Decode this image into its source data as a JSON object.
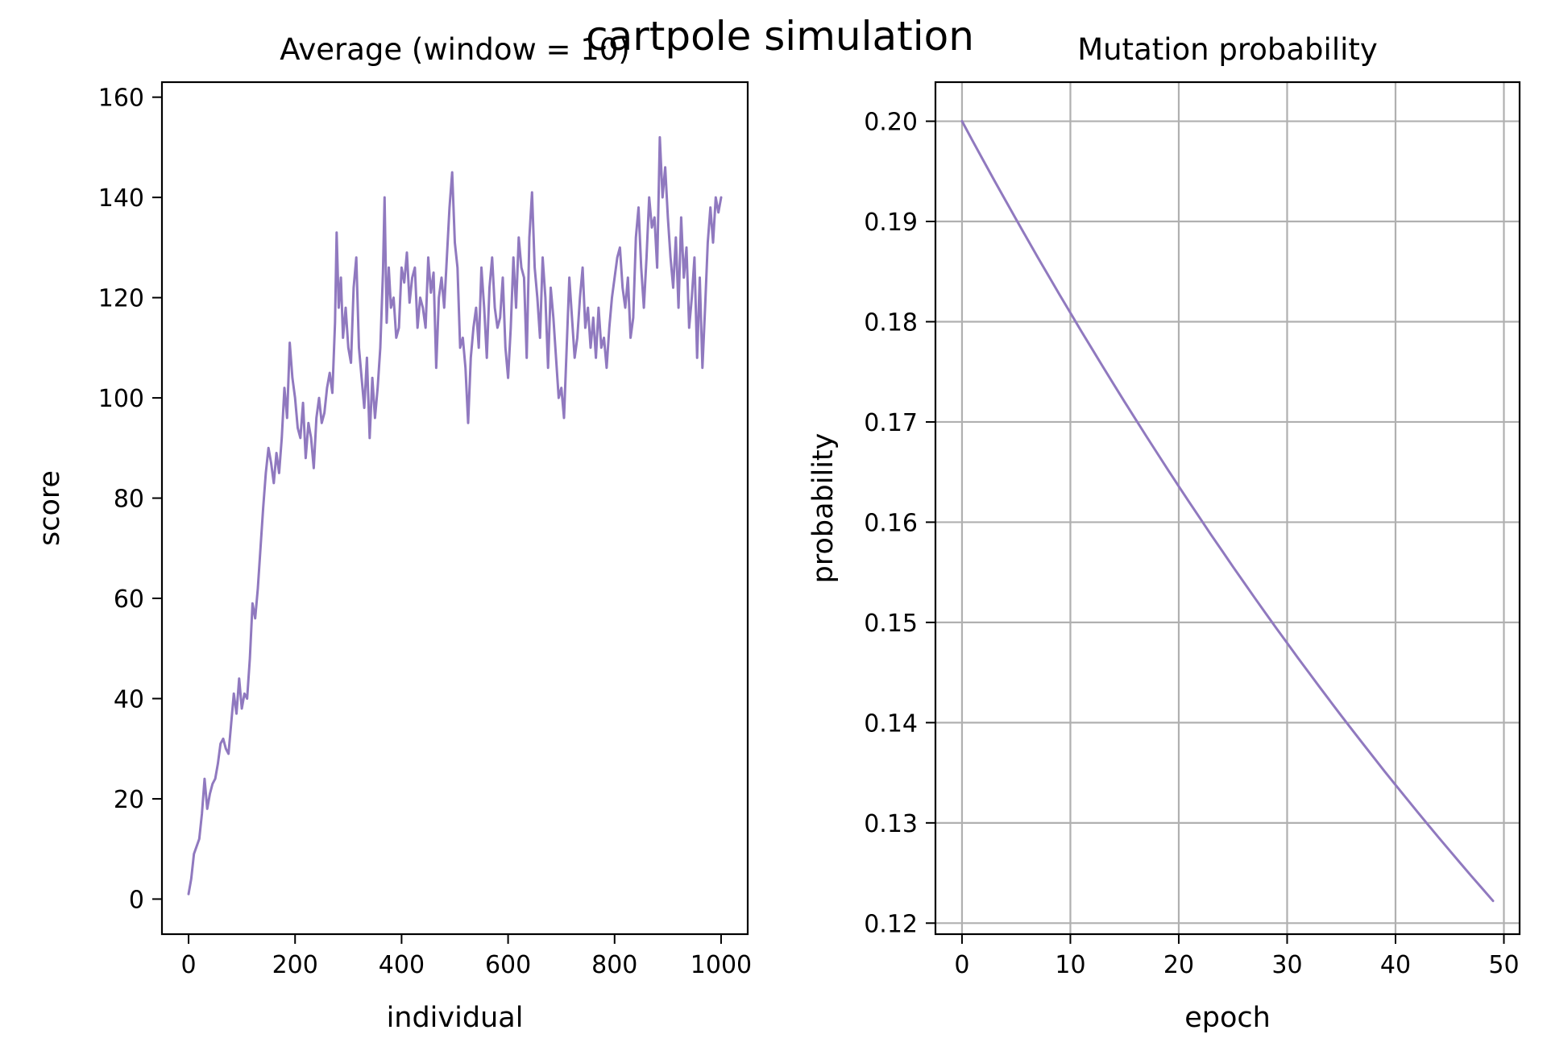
{
  "figure": {
    "suptitle": "cartpole simulation"
  },
  "colors": {
    "series": "#9079bf",
    "grid": "#b0b0b0",
    "axis": "#000000",
    "background": "#ffffff"
  },
  "chart_data": [
    {
      "type": "line",
      "title": "Average (window = 10)",
      "xlabel": "individual",
      "ylabel": "score",
      "xlim": [
        -50,
        1050
      ],
      "ylim": [
        -7,
        163
      ],
      "xticks": [
        0,
        200,
        400,
        600,
        800,
        1000
      ],
      "yticks": [
        0,
        20,
        40,
        60,
        80,
        100,
        120,
        140,
        160
      ],
      "xtick_labels": [
        "0",
        "200",
        "400",
        "600",
        "800",
        "1000"
      ],
      "ytick_labels": [
        "0",
        "20",
        "40",
        "60",
        "80",
        "100",
        "120",
        "140",
        "160"
      ],
      "grid": false,
      "series": [
        {
          "x": [
            0,
            5,
            10,
            20,
            25,
            30,
            35,
            40,
            45,
            50,
            55,
            60,
            65,
            70,
            75,
            80,
            85,
            90,
            95,
            100,
            105,
            110,
            115,
            120,
            125,
            130,
            135,
            140,
            145,
            150,
            155,
            160,
            165,
            170,
            175,
            180,
            185,
            190,
            195,
            200,
            205,
            210,
            215,
            220,
            225,
            230,
            235,
            240,
            245,
            250,
            255,
            260,
            265,
            270,
            275,
            278,
            282,
            286,
            290,
            295,
            300,
            305,
            310,
            315,
            320,
            325,
            330,
            335,
            340,
            345,
            350,
            355,
            360,
            365,
            368,
            372,
            376,
            380,
            385,
            390,
            395,
            400,
            405,
            410,
            415,
            420,
            425,
            430,
            435,
            440,
            445,
            450,
            455,
            460,
            465,
            470,
            475,
            480,
            485,
            490,
            495,
            500,
            505,
            510,
            515,
            520,
            525,
            530,
            535,
            540,
            545,
            550,
            555,
            560,
            565,
            570,
            575,
            580,
            585,
            590,
            595,
            600,
            605,
            610,
            615,
            620,
            625,
            630,
            635,
            640,
            645,
            650,
            655,
            660,
            665,
            670,
            675,
            680,
            685,
            690,
            695,
            700,
            705,
            710,
            715,
            720,
            725,
            730,
            735,
            740,
            745,
            750,
            755,
            760,
            765,
            770,
            775,
            780,
            785,
            790,
            795,
            800,
            805,
            810,
            815,
            820,
            825,
            830,
            835,
            840,
            845,
            850,
            855,
            860,
            865,
            870,
            875,
            880,
            885,
            890,
            895,
            900,
            905,
            910,
            915,
            920,
            925,
            930,
            935,
            940,
            945,
            950,
            955,
            960,
            965,
            970,
            975,
            980,
            985,
            990,
            995,
            1000
          ],
          "y": [
            1,
            4,
            9,
            12,
            17,
            24,
            18,
            21,
            23,
            24,
            27,
            31,
            32,
            30,
            29,
            35,
            41,
            37,
            44,
            38,
            41,
            40,
            48,
            59,
            56,
            62,
            70,
            78,
            85,
            90,
            87,
            83,
            89,
            85,
            92,
            102,
            96,
            111,
            104,
            100,
            94,
            92,
            99,
            88,
            95,
            92,
            86,
            96,
            100,
            95,
            97,
            102,
            105,
            101,
            115,
            133,
            118,
            124,
            112,
            118,
            110,
            107,
            122,
            128,
            110,
            104,
            98,
            108,
            92,
            104,
            96,
            102,
            110,
            125,
            140,
            115,
            126,
            118,
            120,
            112,
            114,
            126,
            123,
            129,
            119,
            124,
            126,
            114,
            120,
            118,
            114,
            128,
            121,
            125,
            106,
            120,
            124,
            118,
            128,
            138,
            145,
            131,
            126,
            110,
            112,
            106,
            95,
            108,
            114,
            118,
            110,
            126,
            118,
            108,
            122,
            128,
            118,
            114,
            116,
            124,
            110,
            104,
            114,
            128,
            118,
            132,
            126,
            124,
            108,
            132,
            141,
            126,
            120,
            112,
            128,
            120,
            106,
            122,
            116,
            108,
            100,
            102,
            96,
            110,
            124,
            116,
            108,
            112,
            120,
            126,
            114,
            118,
            110,
            116,
            108,
            118,
            110,
            112,
            106,
            114,
            120,
            124,
            128,
            130,
            122,
            118,
            124,
            112,
            116,
            132,
            138,
            126,
            118,
            128,
            140,
            134,
            136,
            126,
            152,
            140,
            146,
            136,
            128,
            122,
            132,
            118,
            136,
            124,
            130,
            114,
            120,
            128,
            108,
            124,
            106,
            118,
            131,
            138,
            131,
            140,
            137,
            140
          ]
        }
      ]
    },
    {
      "type": "line",
      "title": "Mutation probability",
      "xlabel": "epoch",
      "ylabel": "probability",
      "xlim": [
        -2.45,
        51.45
      ],
      "ylim": [
        0.1189,
        0.2039
      ],
      "xticks": [
        0,
        10,
        20,
        30,
        40,
        50
      ],
      "yticks": [
        0.12,
        0.13,
        0.14,
        0.15,
        0.16,
        0.17,
        0.18,
        0.19,
        0.2
      ],
      "xtick_labels": [
        "0",
        "10",
        "20",
        "30",
        "40",
        "50"
      ],
      "ytick_labels": [
        "0.12",
        "0.13",
        "0.14",
        "0.15",
        "0.16",
        "0.17",
        "0.18",
        "0.19",
        "0.20"
      ],
      "grid": true,
      "series": [
        {
          "x": [
            0,
            1,
            2,
            3,
            4,
            5,
            6,
            7,
            8,
            9,
            10,
            11,
            12,
            13,
            14,
            15,
            16,
            17,
            18,
            19,
            20,
            21,
            22,
            23,
            24,
            25,
            26,
            27,
            28,
            29,
            30,
            31,
            32,
            33,
            34,
            35,
            36,
            37,
            38,
            39,
            40,
            41,
            42,
            43,
            44,
            45,
            46,
            47,
            48,
            49
          ],
          "y": [
            0.2,
            0.198,
            0.19602,
            0.19406,
            0.19212,
            0.1902,
            0.18829,
            0.18641,
            0.18455,
            0.1827,
            0.18088,
            0.17907,
            0.17728,
            0.17551,
            0.17375,
            0.17201,
            0.17029,
            0.16859,
            0.1669,
            0.16523,
            0.16358,
            0.16195,
            0.16033,
            0.15872,
            0.15714,
            0.15556,
            0.15401,
            0.15247,
            0.15094,
            0.14943,
            0.14794,
            0.14646,
            0.145,
            0.14355,
            0.14211,
            0.14069,
            0.13928,
            0.13789,
            0.13651,
            0.13514,
            0.13379,
            0.13246,
            0.13113,
            0.12982,
            0.12852,
            0.12724,
            0.12596,
            0.1247,
            0.12346,
            0.12222
          ]
        }
      ]
    }
  ]
}
